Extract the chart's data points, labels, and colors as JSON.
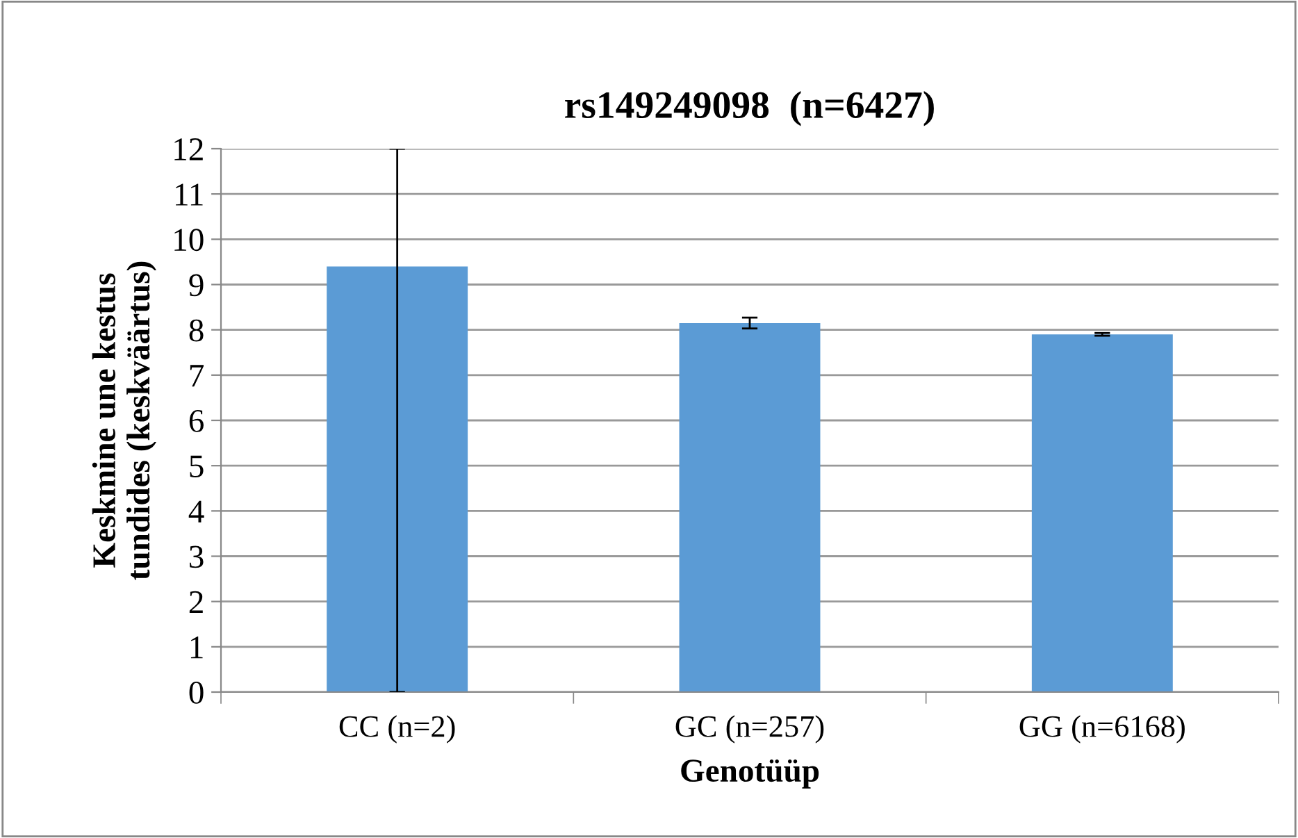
{
  "chart_data": {
    "type": "bar",
    "title": "rs149249098  (n=6427)",
    "xlabel": "Genotüüp",
    "ylabel": "Keskmine une kestus\ntundides (keskväärtus)",
    "categories": [
      "CC (n=2)",
      "GC (n=257)",
      "GG (n=6168)"
    ],
    "values": [
      9.4,
      8.15,
      7.9
    ],
    "errors": [
      [
        0,
        12
      ],
      0.12,
      0.03
    ],
    "color": "#5b9bd5",
    "ylim": [
      0,
      12
    ],
    "yticks": [
      0,
      1,
      2,
      3,
      4,
      5,
      6,
      7,
      8,
      9,
      10,
      11,
      12
    ],
    "grid": "y",
    "legend": false
  }
}
